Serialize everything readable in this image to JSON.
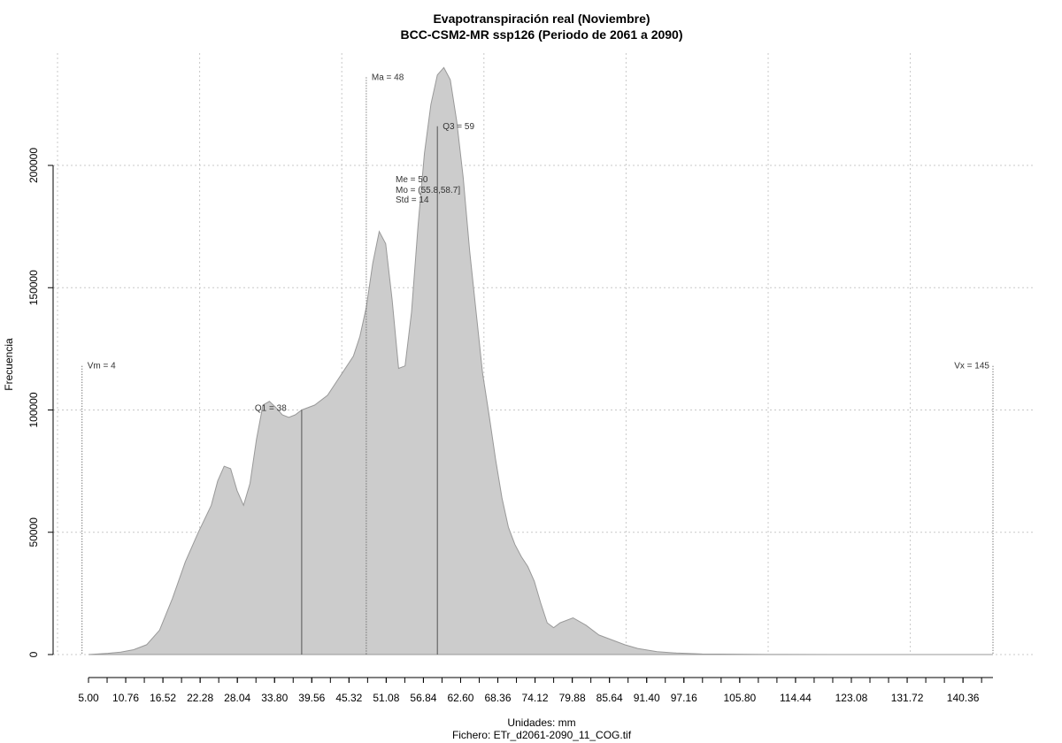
{
  "chart_data": {
    "type": "area",
    "title": "Evapotranspiración real (Noviembre)",
    "subtitle": "BCC-CSM2-MR ssp126 (Periodo de 2061 a 2090)",
    "xlabel": "Unidades: mm",
    "footer": "Fichero: ETr_d2061-2090_11_COG.tif",
    "ylabel": "Frecuencia",
    "xlim": [
      5,
      145
    ],
    "ylim": [
      0,
      240000
    ],
    "x_ticks": [
      "5.00",
      "10.76",
      "16.52",
      "22.28",
      "28.04",
      "33.80",
      "39.56",
      "45.32",
      "51.08",
      "56.84",
      "62.60",
      "68.36",
      "74.12",
      "79.88",
      "85.64",
      "91.40",
      "97.16",
      "105.80",
      "114.44",
      "123.08",
      "131.72",
      "140.36"
    ],
    "y_ticks": [
      "0",
      "50000",
      "100000",
      "150000",
      "200000"
    ],
    "y_tick_values": [
      0,
      50000,
      100000,
      150000,
      200000
    ],
    "grid": true,
    "fill_color": "#cccccc",
    "stroke_color": "#999999",
    "x": [
      5,
      8,
      10,
      12,
      14,
      16,
      18,
      20,
      22,
      24,
      25,
      26,
      27,
      28,
      29,
      30,
      31,
      32,
      33,
      34,
      35,
      36,
      37,
      38,
      40,
      42,
      44,
      46,
      47,
      48,
      49,
      50,
      51,
      52,
      53,
      54,
      55,
      56,
      57,
      58,
      59,
      60,
      61,
      62,
      63,
      64,
      65,
      66,
      67,
      68,
      69,
      70,
      71,
      72,
      73,
      74,
      75,
      76,
      77,
      78,
      80,
      82,
      84,
      86,
      88,
      90,
      93,
      96,
      100,
      110,
      120,
      130,
      140,
      145
    ],
    "y": [
      0,
      500,
      1000,
      2000,
      4000,
      10000,
      23000,
      38000,
      50000,
      61000,
      71000,
      77000,
      76000,
      67000,
      61000,
      70000,
      88000,
      102000,
      103500,
      101000,
      98000,
      97000,
      98000,
      100000,
      102000,
      106000,
      114000,
      122000,
      130000,
      142000,
      160000,
      173000,
      168000,
      145000,
      117000,
      118000,
      140000,
      175000,
      205000,
      225000,
      237000,
      240000,
      235000,
      218000,
      195000,
      165000,
      140000,
      115000,
      98000,
      80000,
      64000,
      52000,
      45000,
      40000,
      36000,
      30000,
      21000,
      13000,
      11000,
      13000,
      15000,
      12000,
      8000,
      6000,
      4000,
      2500,
      1200,
      600,
      200,
      50,
      0,
      0,
      0,
      0
    ],
    "annotations": [
      {
        "label": "Vm = 4",
        "x": 4,
        "y_top": 118000,
        "style": "dotted"
      },
      {
        "label": "Vx = 145",
        "x": 145,
        "y_top": 118000,
        "style": "dotted"
      },
      {
        "label": "Q1 = 38",
        "x": 38,
        "y_top": 100000,
        "style": "solid"
      },
      {
        "label": "Ma = 48",
        "x": 48,
        "y_top": 236000,
        "style": "dotted"
      },
      {
        "label": "Q3 = 59",
        "x": 59,
        "y_top": 216000,
        "style": "solid"
      }
    ],
    "stats_box": [
      "Me = 50",
      "Mo = (55.8,58.7]",
      "Std = 14"
    ]
  }
}
